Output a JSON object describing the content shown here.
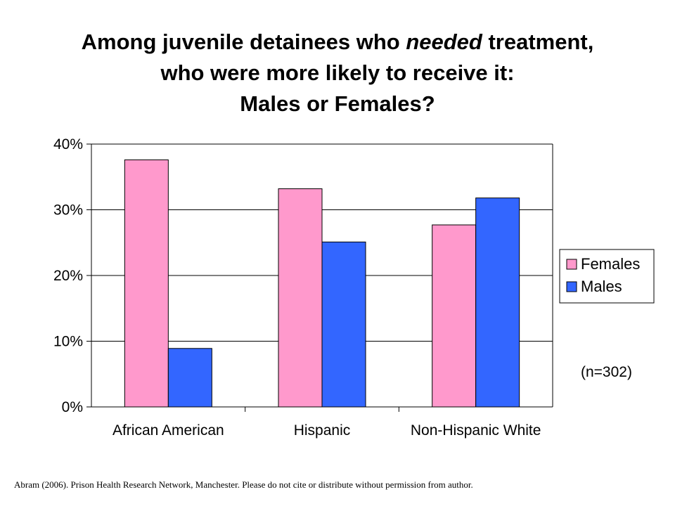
{
  "title": {
    "line1_pre": "Among juvenile detainees who ",
    "line1_em": "needed",
    "line1_post": " treatment,",
    "line2": "who were more likely to receive it:",
    "line3": "Males or Females?"
  },
  "colors": {
    "females": "#ff99cc",
    "males": "#3366ff"
  },
  "chart_data": {
    "type": "bar",
    "categories": [
      "African American",
      "Hispanic",
      "Non-Hispanic White"
    ],
    "series": [
      {
        "name": "Females",
        "values": [
          37.6,
          33.2,
          27.7
        ]
      },
      {
        "name": "Males",
        "values": [
          8.9,
          25.1,
          31.8
        ]
      }
    ],
    "yticks": [
      "0%",
      "10%",
      "20%",
      "30%",
      "40%"
    ],
    "ylim": [
      0,
      40
    ],
    "grid": true,
    "legend_position": "right"
  },
  "note": "(n=302)",
  "footer": "Abram (2006). Prison Health Research Network, Manchester.  Please do not cite or distribute without permission from author."
}
